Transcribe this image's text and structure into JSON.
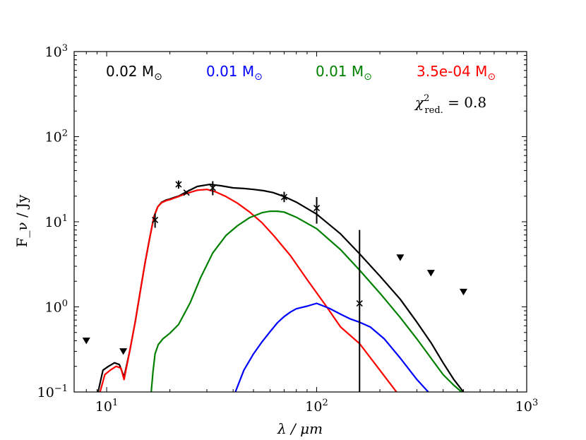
{
  "chart_data": {
    "type": "line",
    "title": "",
    "xlabel": "λ / μm",
    "ylabel": "F_ν / Jy",
    "xscale": "log",
    "yscale": "log",
    "xlim": [
      7,
      1000
    ],
    "ylim": [
      0.1,
      1000
    ],
    "grid": false,
    "x_ticks": [
      {
        "value": 10,
        "base": "10",
        "exp": "1"
      },
      {
        "value": 100,
        "base": "10",
        "exp": "2"
      },
      {
        "value": 1000,
        "base": "10",
        "exp": "3"
      }
    ],
    "y_ticks": [
      {
        "value": 0.1,
        "base": "10",
        "exp": "−1"
      },
      {
        "value": 1,
        "base": "10",
        "exp": "0"
      },
      {
        "value": 10,
        "base": "10",
        "exp": "1"
      },
      {
        "value": 100,
        "base": "10",
        "exp": "2"
      },
      {
        "value": 1000,
        "base": "10",
        "exp": "3"
      }
    ],
    "mass_labels": [
      {
        "text": "0.02 M",
        "color": "#000000"
      },
      {
        "text": "0.01 M",
        "color": "#0000ff"
      },
      {
        "text": "0.01 M",
        "color": "#008000"
      },
      {
        "text": "3.5e-04 M",
        "color": "#ff0000"
      }
    ],
    "sun_symbol": "⊙",
    "chi2_label": {
      "symbol": "χ",
      "sup": "2",
      "sub": "red.",
      "rest": " = 0.8"
    },
    "series": [
      {
        "name": "total",
        "color": "#000000",
        "x": [
          9.1,
          9.6,
          10.2,
          10.9,
          11.5,
          12.1,
          12.9,
          13.7,
          14.5,
          15.2,
          16.0,
          16.8,
          17.5,
          18.3,
          19.2,
          20.0,
          21.0,
          22.0,
          24.0,
          27.0,
          31.0,
          35.0,
          40.0,
          45.0,
          50.0,
          56.0,
          62.0,
          70.0,
          80.0,
          100.0,
          130.0,
          160.0,
          200.0,
          250.0,
          300.0,
          350.0,
          400.0,
          450.0,
          500.0
        ],
        "values": [
          0.1,
          0.18,
          0.2,
          0.22,
          0.21,
          0.15,
          0.31,
          0.68,
          1.6,
          3.2,
          6.3,
          11.5,
          15.0,
          17.0,
          18.0,
          18.5,
          19.3,
          20.0,
          22.5,
          26.0,
          27.5,
          26.5,
          25.0,
          24.6,
          24.0,
          23.2,
          22.0,
          19.8,
          17.0,
          12.3,
          7.2,
          4.2,
          2.3,
          1.23,
          0.66,
          0.38,
          0.22,
          0.14,
          0.1
        ]
      },
      {
        "name": "red",
        "color": "#ff0000",
        "x": [
          9.3,
          9.8,
          10.4,
          11.1,
          11.7,
          12.1,
          12.9,
          13.7,
          14.5,
          15.2,
          16.0,
          16.8,
          17.5,
          18.3,
          19.2,
          20.0,
          21.0,
          22.0,
          24.0,
          27.0,
          30.0,
          33.0,
          37.0,
          42.0,
          48.0,
          55.0,
          63.0,
          75.0,
          90.0,
          110.0,
          130.0,
          160.0,
          200.0,
          240.0
        ],
        "values": [
          0.1,
          0.16,
          0.18,
          0.2,
          0.19,
          0.14,
          0.31,
          0.68,
          1.6,
          3.2,
          6.3,
          11.5,
          15.0,
          16.8,
          17.7,
          18.2,
          19.0,
          19.8,
          21.5,
          23.5,
          24.0,
          22.5,
          19.8,
          16.5,
          13.0,
          9.7,
          6.7,
          4.0,
          2.1,
          1.05,
          0.58,
          0.37,
          0.18,
          0.1
        ]
      },
      {
        "name": "green",
        "color": "#008000",
        "x": [
          16.3,
          16.6,
          17.0,
          17.6,
          18.5,
          20.0,
          22.0,
          25.0,
          28.0,
          32.0,
          37.0,
          42.0,
          48.0,
          55.0,
          60.0,
          65.0,
          70.0,
          80.0,
          100.0,
          130.0,
          160.0,
          200.0,
          250.0,
          300.0,
          350.0,
          400.0,
          450.0,
          490.0
        ],
        "values": [
          0.1,
          0.17,
          0.28,
          0.36,
          0.42,
          0.49,
          0.62,
          1.12,
          2.2,
          4.3,
          6.9,
          9.0,
          11.2,
          12.8,
          13.3,
          13.3,
          13.0,
          11.3,
          8.3,
          4.7,
          2.7,
          1.45,
          0.75,
          0.42,
          0.25,
          0.16,
          0.12,
          0.1
        ]
      },
      {
        "name": "blue",
        "color": "#0000ff",
        "x": [
          41.0,
          45.0,
          50.0,
          55.0,
          60.0,
          65.0,
          70.0,
          75.0,
          80.0,
          90.0,
          100.0,
          115.0,
          130.0,
          145.0,
          160.0,
          180.0,
          210.0,
          250.0,
          300.0,
          340.0
        ],
        "values": [
          0.1,
          0.18,
          0.28,
          0.39,
          0.51,
          0.65,
          0.77,
          0.87,
          0.95,
          1.02,
          1.1,
          0.96,
          0.82,
          0.72,
          0.66,
          0.58,
          0.42,
          0.25,
          0.14,
          0.1
        ]
      }
    ],
    "data_points": [
      {
        "x": 17,
        "y": 10.5,
        "err": [
          8.5,
          12.5
        ]
      },
      {
        "x": 22,
        "y": 27.5,
        "err": [
          24.5,
          30.5
        ]
      },
      {
        "x": 24,
        "y": 22.0,
        "err": null
      },
      {
        "x": 32,
        "y": 25.0,
        "err": [
          20.5,
          30.0
        ]
      },
      {
        "x": 70,
        "y": 19.5,
        "err": [
          17.0,
          22.5
        ]
      },
      {
        "x": 100,
        "y": 14.5,
        "err": [
          9.5,
          19.5
        ]
      },
      {
        "x": 160,
        "y": 1.1,
        "err": [
          0.1,
          8.0
        ]
      }
    ],
    "upper_limits": [
      {
        "x": 8,
        "y": 0.4
      },
      {
        "x": 12,
        "y": 0.3
      },
      {
        "x": 250,
        "y": 3.8
      },
      {
        "x": 350,
        "y": 2.5
      },
      {
        "x": 500,
        "y": 1.5
      }
    ]
  }
}
